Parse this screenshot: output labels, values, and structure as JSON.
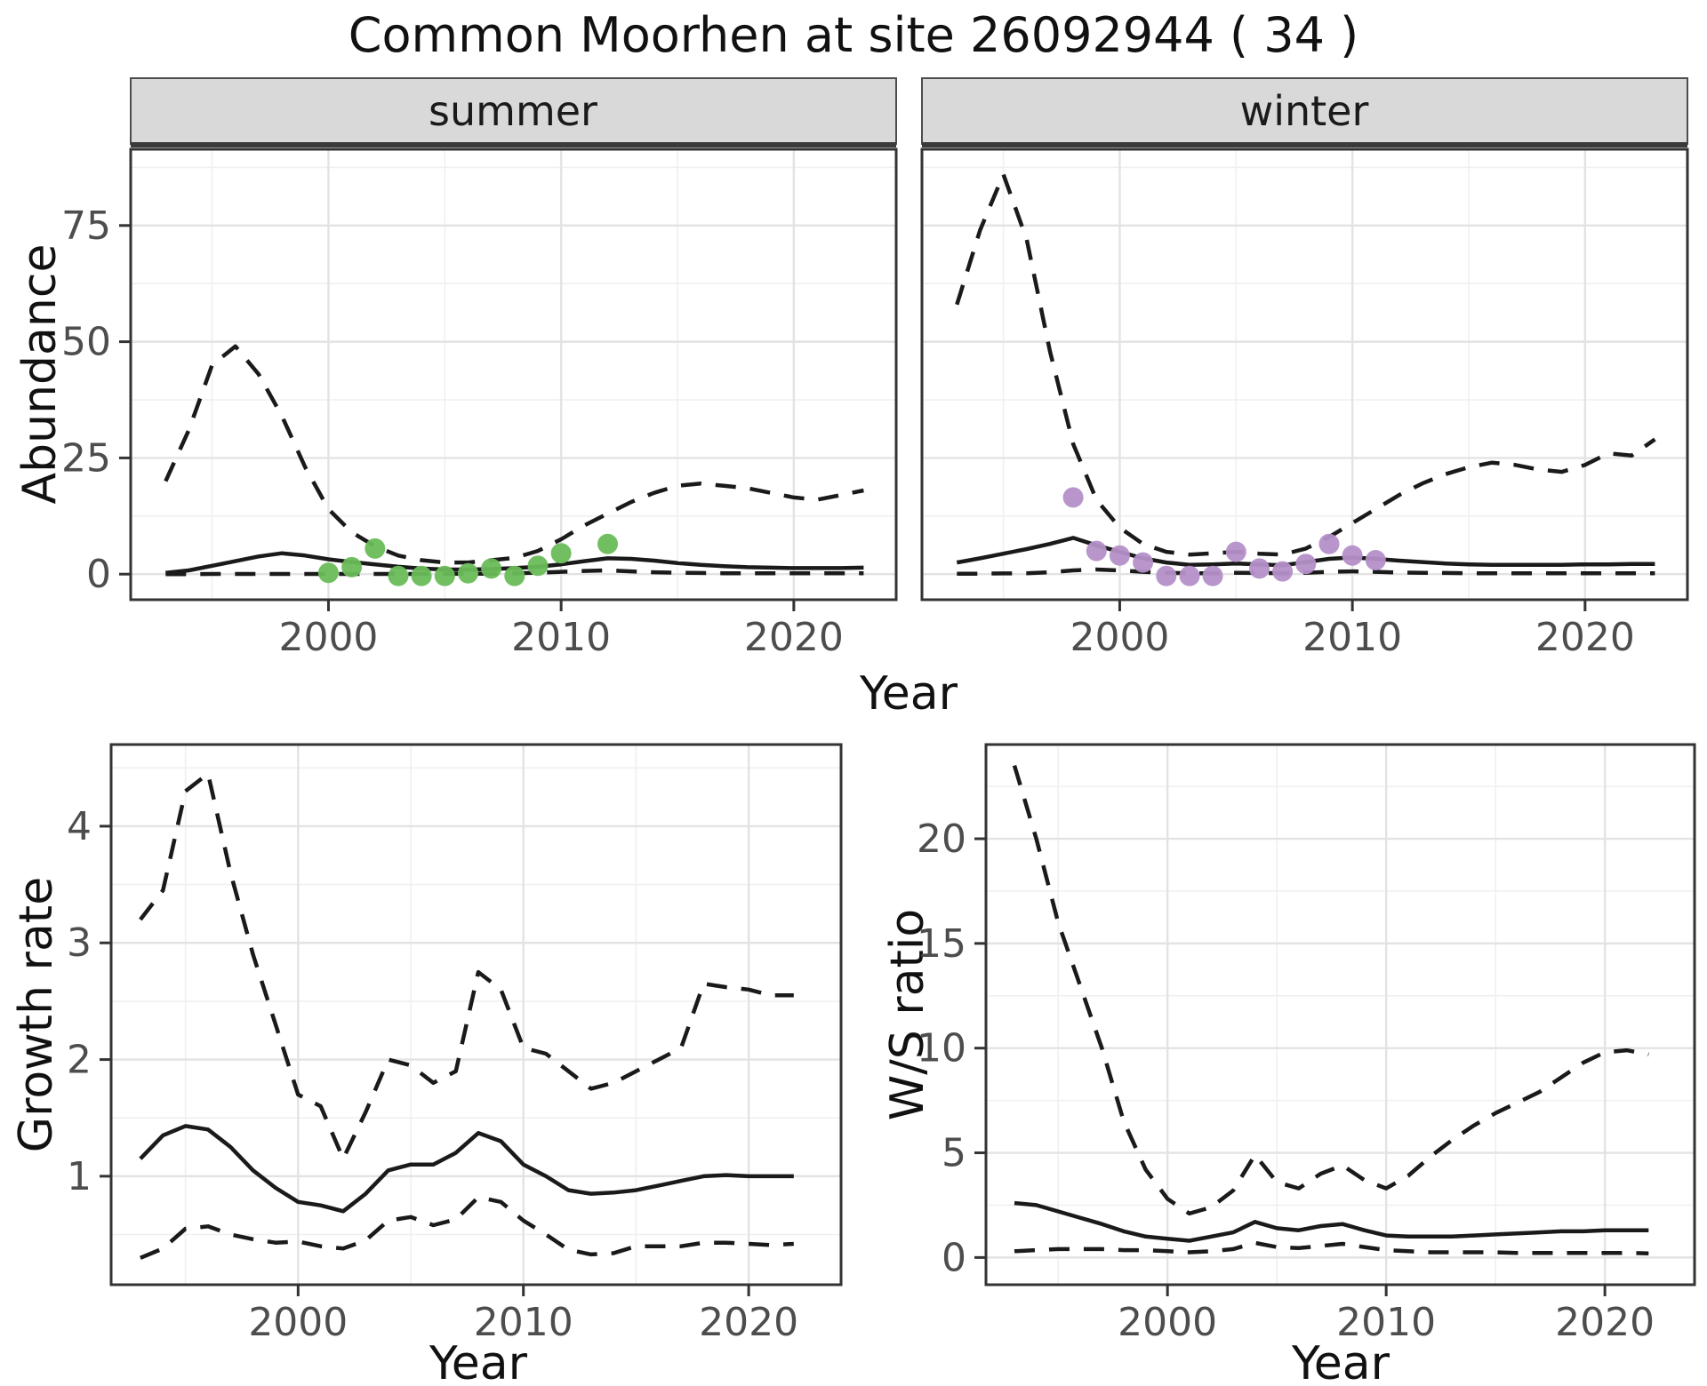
{
  "chart_data": {
    "type": "line",
    "title": "Common Moorhen at site 26092944 ( 34 )",
    "layout_hints": {
      "grid": "on",
      "legend": "none",
      "line_styles": {
        "mean": "solid",
        "credible_interval": "dashed"
      }
    },
    "abundance": {
      "ylabel": "Abundance",
      "xlabel": "Year",
      "yticks": [
        0,
        25,
        50,
        75
      ],
      "xticks": [
        2000,
        2010,
        2020
      ],
      "ylim": [
        -5.5,
        91.4
      ],
      "xlim": [
        1991.5,
        2024.4
      ],
      "years": [
        1993,
        1994,
        1995,
        1996,
        1997,
        1998,
        1999,
        2000,
        2001,
        2002,
        2003,
        2004,
        2005,
        2006,
        2007,
        2008,
        2009,
        2010,
        2011,
        2012,
        2013,
        2014,
        2015,
        2016,
        2017,
        2018,
        2019,
        2020,
        2021,
        2022,
        2023
      ],
      "facets": [
        {
          "label": "summer",
          "point_color": "#6abc5a",
          "mean": [
            0.3,
            0.8,
            1.8,
            2.8,
            3.8,
            4.5,
            4.0,
            3.2,
            2.6,
            2.1,
            1.6,
            1.2,
            1.0,
            1.0,
            1.1,
            1.3,
            1.6,
            2.1,
            2.8,
            3.4,
            3.3,
            2.9,
            2.4,
            2.0,
            1.7,
            1.5,
            1.4,
            1.3,
            1.3,
            1.3,
            1.4
          ],
          "upper": [
            20,
            31,
            45,
            49,
            43,
            34,
            23,
            14,
            9,
            6,
            4,
            3,
            2.5,
            2.5,
            3,
            3.5,
            5,
            7.5,
            10.5,
            13,
            15.5,
            17.5,
            19,
            19.5,
            19,
            18.5,
            17.5,
            16.5,
            16,
            17,
            18
          ],
          "lower": [
            0,
            0,
            0.05,
            0.05,
            0.05,
            0.05,
            0.05,
            0.05,
            0.05,
            0.05,
            0.05,
            0.05,
            0.05,
            0.1,
            0.1,
            0.2,
            0.3,
            0.5,
            0.7,
            0.8,
            0.6,
            0.4,
            0.3,
            0.25,
            0.2,
            0.2,
            0.2,
            0.2,
            0.2,
            0.2,
            0.2
          ],
          "points": [
            [
              2000,
              0.3
            ],
            [
              2001,
              1.5
            ],
            [
              2002,
              5.5
            ],
            [
              2003,
              -0.4
            ],
            [
              2004,
              -0.4
            ],
            [
              2005,
              -0.4
            ],
            [
              2006,
              0.2
            ],
            [
              2007,
              1.2
            ],
            [
              2008,
              -0.4
            ],
            [
              2009,
              1.8
            ],
            [
              2010,
              4.5
            ],
            [
              2012,
              6.5
            ]
          ]
        },
        {
          "label": "winter",
          "point_color": "#b48fc8",
          "mean": [
            2.5,
            3.4,
            4.4,
            5.4,
            6.5,
            7.8,
            6.2,
            4.8,
            3.4,
            2.5,
            2.0,
            2.1,
            2.3,
            2.1,
            1.9,
            2.6,
            3.3,
            3.6,
            3.3,
            2.9,
            2.6,
            2.3,
            2.1,
            2.0,
            2.0,
            2.0,
            2.0,
            2.1,
            2.1,
            2.2,
            2.2
          ],
          "upper": [
            58,
            74,
            86,
            72,
            48,
            28,
            16,
            10,
            6.5,
            4.8,
            4.2,
            4.5,
            4.8,
            4.4,
            4.2,
            5.5,
            8,
            11,
            14,
            17,
            19.5,
            21.5,
            23,
            24,
            23.5,
            22.5,
            22,
            23.5,
            26,
            25.5,
            29
          ],
          "lower": [
            0.1,
            0.1,
            0.15,
            0.2,
            0.4,
            0.8,
            1.0,
            0.8,
            0.5,
            0.3,
            0.2,
            0.2,
            0.3,
            0.25,
            0.2,
            0.3,
            0.5,
            0.6,
            0.5,
            0.35,
            0.3,
            0.25,
            0.2,
            0.2,
            0.2,
            0.2,
            0.2,
            0.2,
            0.2,
            0.2,
            0.2
          ],
          "points": [
            [
              1998,
              16.5
            ],
            [
              1999,
              5
            ],
            [
              2000,
              4
            ],
            [
              2001,
              2.5
            ],
            [
              2002,
              -0.4
            ],
            [
              2003,
              -0.4
            ],
            [
              2004,
              -0.4
            ],
            [
              2005,
              4.8
            ],
            [
              2006,
              1.2
            ],
            [
              2007,
              0.6
            ],
            [
              2008,
              2.2
            ],
            [
              2009,
              6.5
            ],
            [
              2010,
              4
            ],
            [
              2011,
              3
            ]
          ]
        }
      ]
    },
    "growth_rate": {
      "ylabel": "Growth rate",
      "xlabel": "Year",
      "yticks": [
        1,
        2,
        3,
        4
      ],
      "xticks": [
        2000,
        2010,
        2020
      ],
      "ylim": [
        0.07,
        4.7
      ],
      "xlim": [
        1991.7,
        2024.1
      ],
      "years": [
        1993,
        1994,
        1995,
        1996,
        1997,
        1998,
        1999,
        2000,
        2001,
        2002,
        2003,
        2004,
        2005,
        2006,
        2007,
        2008,
        2009,
        2010,
        2011,
        2012,
        2013,
        2014,
        2015,
        2016,
        2017,
        2018,
        2019,
        2020,
        2021,
        2022
      ],
      "mean": [
        1.15,
        1.35,
        1.43,
        1.4,
        1.25,
        1.05,
        0.9,
        0.78,
        0.75,
        0.7,
        0.85,
        1.05,
        1.1,
        1.1,
        1.2,
        1.37,
        1.3,
        1.1,
        1.0,
        0.88,
        0.85,
        0.86,
        0.88,
        0.92,
        0.96,
        1.0,
        1.01,
        1.0,
        1.0,
        1.0
      ],
      "upper": [
        3.2,
        3.45,
        4.3,
        4.45,
        3.6,
        2.9,
        2.3,
        1.7,
        1.6,
        1.15,
        1.55,
        2.0,
        1.95,
        1.8,
        1.9,
        2.75,
        2.6,
        2.1,
        2.05,
        1.9,
        1.75,
        1.8,
        1.9,
        2.0,
        2.1,
        2.65,
        2.62,
        2.6,
        2.55,
        2.55
      ],
      "lower": [
        0.3,
        0.38,
        0.55,
        0.57,
        0.5,
        0.46,
        0.43,
        0.44,
        0.4,
        0.38,
        0.45,
        0.62,
        0.65,
        0.58,
        0.63,
        0.82,
        0.78,
        0.62,
        0.5,
        0.37,
        0.33,
        0.34,
        0.4,
        0.4,
        0.4,
        0.43,
        0.43,
        0.42,
        0.41,
        0.42
      ]
    },
    "ws_ratio": {
      "ylabel": "W/S ratio",
      "xlabel": "Year",
      "yticks": [
        0,
        5,
        10,
        15,
        20
      ],
      "xticks": [
        2000,
        2010,
        2020
      ],
      "ylim": [
        -1.3,
        24.5
      ],
      "xlim": [
        1991.7,
        2024.1
      ],
      "years": [
        1993,
        1994,
        1995,
        1996,
        1997,
        1998,
        1999,
        2000,
        2001,
        2002,
        2003,
        2004,
        2005,
        2006,
        2007,
        2008,
        2009,
        2010,
        2011,
        2012,
        2013,
        2014,
        2015,
        2016,
        2017,
        2018,
        2019,
        2020,
        2021,
        2022
      ],
      "mean": [
        2.6,
        2.5,
        2.2,
        1.9,
        1.6,
        1.25,
        1.0,
        0.9,
        0.8,
        1.0,
        1.2,
        1.7,
        1.4,
        1.3,
        1.5,
        1.6,
        1.3,
        1.05,
        1.0,
        1.0,
        1.0,
        1.05,
        1.1,
        1.15,
        1.2,
        1.25,
        1.25,
        1.3,
        1.3,
        1.3
      ],
      "upper": [
        23.5,
        20.0,
        16.0,
        13.0,
        10.0,
        6.5,
        4.2,
        2.8,
        2.1,
        2.4,
        3.2,
        4.9,
        3.6,
        3.3,
        4.0,
        4.4,
        3.7,
        3.3,
        3.9,
        4.8,
        5.6,
        6.3,
        6.9,
        7.4,
        7.9,
        8.6,
        9.3,
        9.8,
        9.9,
        9.7
      ],
      "lower": [
        0.3,
        0.35,
        0.4,
        0.4,
        0.4,
        0.35,
        0.35,
        0.3,
        0.25,
        0.3,
        0.4,
        0.7,
        0.5,
        0.45,
        0.55,
        0.65,
        0.5,
        0.35,
        0.3,
        0.25,
        0.25,
        0.25,
        0.25,
        0.22,
        0.22,
        0.22,
        0.22,
        0.22,
        0.22,
        0.2
      ]
    },
    "colors": {
      "line": "#1a1a1a",
      "panel_border": "#333333",
      "strip_fill": "#d9d9d9",
      "strip_underline": "#3a3a3a",
      "grid_major": "#e3e3e3",
      "grid_minor": "#f0f0f0",
      "tick_text": "#4d4d4d",
      "summer_points": "#6abc5a",
      "winter_points": "#b48fc8"
    }
  }
}
